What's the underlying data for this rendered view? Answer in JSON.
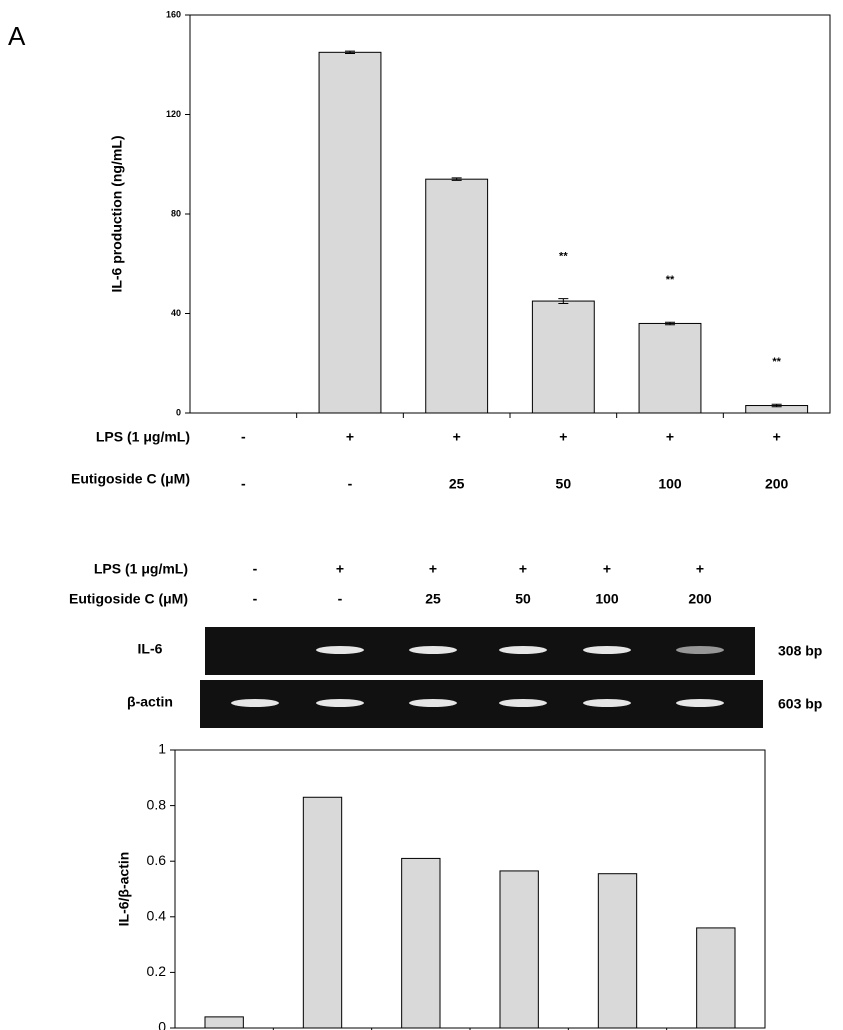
{
  "panel_label": "A",
  "chart_data": [
    {
      "type": "bar",
      "ylabel": "IL-6 production  (ng/mL)",
      "categories": [
        null,
        null,
        null,
        null,
        null,
        null
      ],
      "values": [
        0,
        145,
        94,
        45,
        36,
        3
      ],
      "errors": [
        0,
        0.5,
        0.5,
        1,
        0.5,
        0.5
      ],
      "annotations": [
        null,
        null,
        null,
        "**",
        "**",
        "**"
      ],
      "color": "#d9d9d9",
      "ylim": [
        0,
        160
      ],
      "yticks": [
        0,
        40,
        80,
        120,
        160
      ],
      "x_rows": [
        {
          "label": "LPS (1 μg/mL)",
          "values": [
            "-",
            "+",
            "+",
            "+",
            "+",
            "+"
          ]
        },
        {
          "label": "Eutigoside  C (μM)",
          "values": [
            "-",
            "-",
            "25",
            "50",
            "100",
            "200"
          ]
        }
      ]
    },
    {
      "type": "bar",
      "ylabel": "IL-6/β-actin",
      "categories": [
        null,
        null,
        null,
        null,
        null,
        null
      ],
      "values": [
        0.04,
        0.83,
        0.61,
        0.565,
        0.555,
        0.36
      ],
      "color": "#d9d9d9",
      "ylim": [
        0,
        1
      ],
      "yticks": [
        0,
        0.2,
        0.4,
        0.6,
        0.8,
        1
      ]
    }
  ],
  "gel": {
    "rows": [
      {
        "label": "LPS (1 μg/mL)",
        "values": [
          "-",
          "+",
          "+",
          "+",
          "+",
          "+"
        ]
      },
      {
        "label": "Eutigoside C (μM)",
        "values": [
          "-",
          "-",
          "25",
          "50",
          "100",
          "200"
        ]
      }
    ],
    "bands": [
      {
        "label": "IL-6",
        "size": "308 bp"
      },
      {
        "label": "β-actin",
        "size": "603 bp"
      }
    ]
  }
}
